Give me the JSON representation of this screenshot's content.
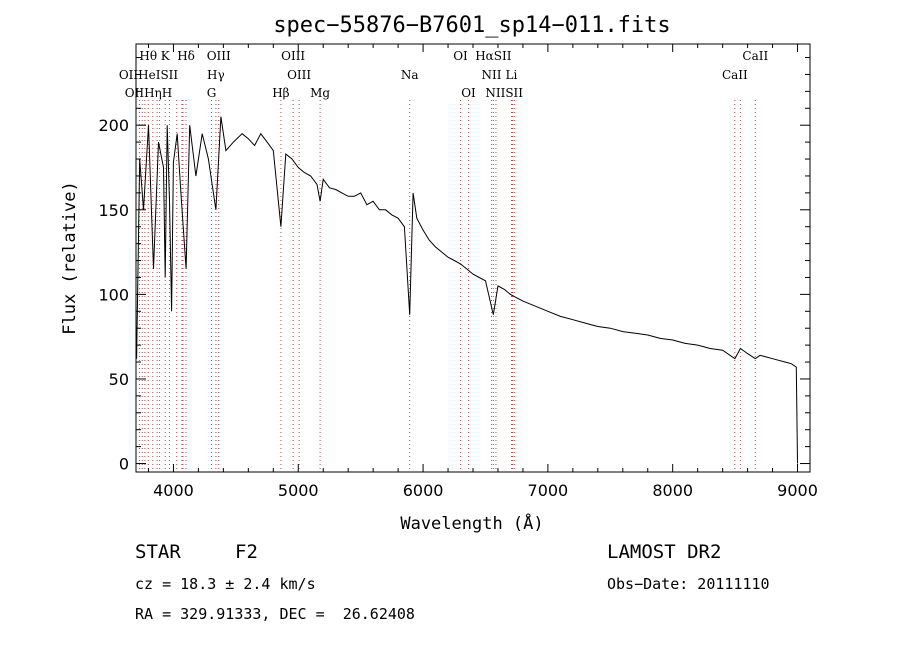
{
  "chart_data": {
    "type": "line",
    "title": "spec−55876−B7601_sp14−011.fits",
    "xlabel": "Wavelength (Å)",
    "ylabel": "Flux (relative)",
    "xlim": [
      3700,
      9100
    ],
    "ylim": [
      -5,
      248
    ],
    "xticks": [
      "4000",
      "5000",
      "6000",
      "7000",
      "8000",
      "9000"
    ],
    "yticks": [
      "0",
      "50",
      "100",
      "150",
      "200"
    ],
    "grid": false,
    "series": [
      {
        "x": [
          3705,
          3730,
          3760,
          3800,
          3840,
          3880,
          3920,
          3934,
          3950,
          3968,
          3985,
          4000,
          4030,
          4060,
          4101,
          4130,
          4180,
          4230,
          4280,
          4340,
          4380,
          4420,
          4480,
          4550,
          4600,
          4650,
          4700,
          4750,
          4800,
          4861,
          4900,
          4950,
          5000,
          5050,
          5100,
          5150,
          5175,
          5200,
          5250,
          5300,
          5350,
          5400,
          5450,
          5500,
          5550,
          5600,
          5650,
          5700,
          5750,
          5800,
          5850,
          5893,
          5920,
          5950,
          6000,
          6050,
          6100,
          6150,
          6200,
          6250,
          6300,
          6350,
          6400,
          6450,
          6500,
          6563,
          6600,
          6650,
          6700,
          6750,
          6800,
          6900,
          7000,
          7100,
          7200,
          7300,
          7400,
          7500,
          7600,
          7700,
          7800,
          7900,
          8000,
          8100,
          8200,
          8300,
          8400,
          8498,
          8542,
          8600,
          8662,
          8700,
          8800,
          8900,
          8950,
          8990,
          9000
        ],
        "y": [
          62,
          180,
          150,
          200,
          115,
          190,
          175,
          110,
          200,
          155,
          90,
          178,
          195,
          160,
          115,
          200,
          170,
          195,
          180,
          150,
          205,
          185,
          190,
          195,
          192,
          188,
          195,
          190,
          185,
          140,
          183,
          180,
          175,
          172,
          170,
          165,
          155,
          168,
          163,
          162,
          160,
          158,
          158,
          160,
          153,
          155,
          150,
          150,
          147,
          145,
          140,
          88,
          160,
          145,
          138,
          132,
          128,
          125,
          122,
          120,
          118,
          115,
          112,
          110,
          108,
          88,
          105,
          103,
          100,
          98,
          96,
          93,
          90,
          87,
          85,
          83,
          81,
          80,
          78,
          77,
          76,
          74,
          73,
          71,
          70,
          68,
          67,
          62,
          68,
          65,
          62,
          64,
          62,
          60,
          59,
          57,
          0
        ]
      }
    ],
    "lines_row1": [
      {
        "label": "Hθ",
        "x": 3798
      },
      {
        "label": "K",
        "x": 3934
      },
      {
        "label": "Hδ",
        "x": 4101
      },
      {
        "label": "OIII",
        "x": 4363
      },
      {
        "label": "OIII",
        "x": 4959
      },
      {
        "label": "OI",
        "x": 6300
      },
      {
        "label": "HαSII",
        "x": 6563
      },
      {
        "label": "CaII",
        "x": 8662
      }
    ],
    "lines_row2": [
      {
        "label": "OIIHeISII",
        "x": 3800
      },
      {
        "label": "Hγ",
        "x": 4340
      },
      {
        "label": "OIII",
        "x": 5007
      },
      {
        "label": "Na",
        "x": 5893
      },
      {
        "label": "NII",
        "x": 6548
      },
      {
        "label": "Li",
        "x": 6708
      },
      {
        "label": "CaII",
        "x": 8498
      }
    ],
    "lines_row3": [
      {
        "label": "OIIHηH",
        "x": 3800
      },
      {
        "label": "G",
        "x": 4305
      },
      {
        "label": "Hβ",
        "x": 4861
      },
      {
        "label": "Mg",
        "x": 5175
      },
      {
        "label": "OI",
        "x": 6364
      },
      {
        "label": "NIISII",
        "x": 6650
      }
    ],
    "marker_lines": [
      3727,
      3750,
      3771,
      3798,
      3835,
      3869,
      3889,
      3934,
      3968,
      4026,
      4068,
      4076,
      4101,
      4305,
      4340,
      4363,
      4861,
      4959,
      5007,
      5175,
      5893,
      6300,
      6364,
      6548,
      6563,
      6584,
      6708,
      6717,
      6731,
      8498,
      8542,
      8662
    ]
  },
  "info": {
    "class": "STAR",
    "subclass": "F2",
    "survey": "LAMOST DR2",
    "cz": "cz = 18.3 ± 2.4 km/s",
    "obsdate": "Obs−Date: 20111110",
    "coords": "RA = 329.91333, DEC =  26.62408"
  }
}
